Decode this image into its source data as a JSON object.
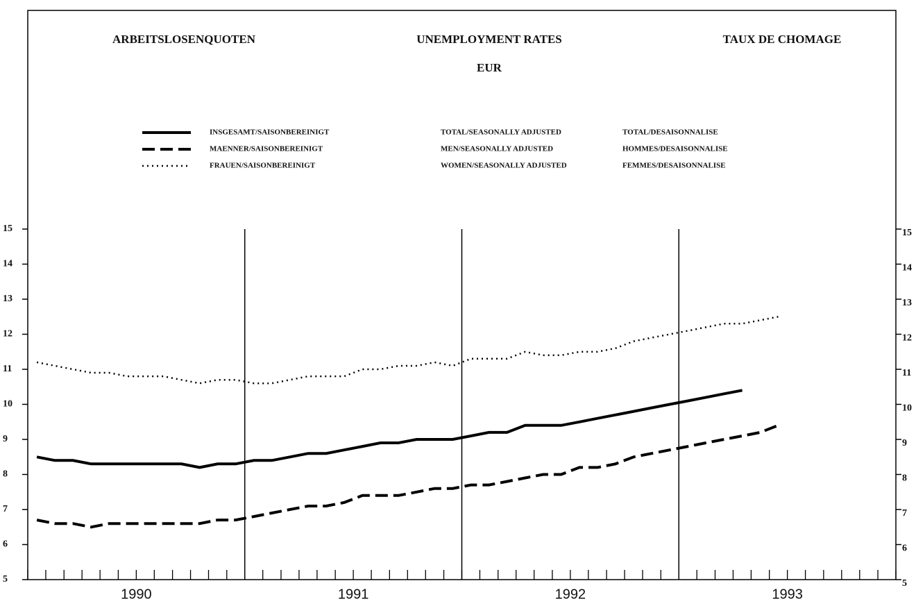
{
  "chart_data": {
    "type": "line",
    "title_de": "ARBEITSLOSENQUOTEN",
    "title_en": "UNEMPLOYMENT RATES",
    "title_fr": "TAUX DE CHOMAGE",
    "subtitle": "EUR",
    "x": [
      1990.042,
      1990.125,
      1990.208,
      1990.292,
      1990.375,
      1990.458,
      1990.542,
      1990.625,
      1990.708,
      1990.792,
      1990.875,
      1990.958,
      1991.042,
      1991.125,
      1991.208,
      1991.292,
      1991.375,
      1991.458,
      1991.542,
      1991.625,
      1991.708,
      1991.792,
      1991.875,
      1991.958,
      1992.042,
      1992.125,
      1992.208,
      1992.292,
      1992.375,
      1992.458,
      1992.542,
      1992.625,
      1992.708,
      1992.792,
      1992.875,
      1992.958,
      1993.042,
      1993.125,
      1993.208,
      1993.292,
      1993.375,
      1993.458
    ],
    "series": [
      {
        "name": "INSGESAMT/SAISONBEREINIGT",
        "name_en": "TOTAL/SEASONALLY ADJUSTED",
        "name_fr": "TOTAL/DESAISONNALISE",
        "color": "#000000",
        "dash": "solid",
        "values": [
          8.5,
          8.4,
          8.4,
          8.3,
          8.3,
          8.3,
          8.3,
          8.3,
          8.3,
          8.2,
          8.3,
          8.3,
          8.4,
          8.4,
          8.5,
          8.6,
          8.6,
          8.7,
          8.8,
          8.9,
          8.9,
          9.0,
          9.0,
          9.0,
          9.1,
          9.2,
          9.2,
          9.4,
          9.4,
          9.4,
          9.5,
          9.6,
          9.7,
          9.8,
          9.9,
          10.0,
          10.1,
          10.2,
          10.3,
          10.4,
          null,
          null
        ]
      },
      {
        "name": "MAENNER/SAISONBEREINIGT",
        "name_en": "MEN/SEASONALLY ADJUSTED",
        "name_fr": "HOMMES/DESAISONNALISE",
        "color": "#000000",
        "dash": "dashed",
        "values": [
          6.7,
          6.6,
          6.6,
          6.5,
          6.6,
          6.6,
          6.6,
          6.6,
          6.6,
          6.6,
          6.7,
          6.7,
          6.8,
          6.9,
          7.0,
          7.1,
          7.1,
          7.2,
          7.4,
          7.4,
          7.4,
          7.5,
          7.6,
          7.6,
          7.7,
          7.7,
          7.8,
          7.9,
          8.0,
          8.0,
          8.2,
          8.2,
          8.3,
          8.5,
          8.6,
          8.7,
          8.8,
          8.9,
          9.0,
          9.1,
          9.2,
          9.4
        ]
      },
      {
        "name": "FRAUEN/SAISONBEREINIGT",
        "name_en": "WOMEN/SEASONALLY ADJUSTED",
        "name_fr": "FEMMES/DESAISONNALISE",
        "color": "#000000",
        "dash": "dotted",
        "values": [
          11.2,
          11.1,
          11.0,
          10.9,
          10.9,
          10.8,
          10.8,
          10.8,
          10.7,
          10.6,
          10.7,
          10.7,
          10.6,
          10.6,
          10.7,
          10.8,
          10.8,
          10.8,
          11.0,
          11.0,
          11.1,
          11.1,
          11.2,
          11.1,
          11.3,
          11.3,
          11.3,
          11.5,
          11.4,
          11.4,
          11.5,
          11.5,
          11.6,
          11.8,
          11.9,
          12.0,
          12.1,
          12.2,
          12.3,
          12.3,
          12.4,
          12.5
        ]
      }
    ],
    "xlim": [
      1990,
      1994
    ],
    "xticks": [
      {
        "value": 1990.5,
        "label": "1990"
      },
      {
        "value": 1991.5,
        "label": "1991"
      },
      {
        "value": 1992.5,
        "label": "1992"
      },
      {
        "value": 1993.5,
        "label": "1993"
      }
    ],
    "xminorticks": [
      1990,
      1990.083,
      1990.167,
      1990.25,
      1990.333,
      1990.417,
      1990.5,
      1990.583,
      1990.667,
      1990.75,
      1990.833,
      1990.917,
      1991,
      1991.083,
      1991.167,
      1991.25,
      1991.333,
      1991.417,
      1991.5,
      1991.583,
      1991.667,
      1991.75,
      1991.833,
      1991.917,
      1992,
      1992.083,
      1992.167,
      1992.25,
      1992.333,
      1992.417,
      1992.5,
      1992.583,
      1992.667,
      1992.75,
      1992.833,
      1992.917,
      1993,
      1993.083,
      1993.167,
      1993.25,
      1993.333,
      1993.417,
      1993.5,
      1993.583,
      1993.667,
      1993.75,
      1993.833,
      1993.917,
      1994
    ],
    "vlines": [
      1991,
      1992,
      1993
    ],
    "ylim": [
      5,
      15
    ],
    "yticks": [
      5,
      6,
      7,
      8,
      9,
      10,
      11,
      12,
      13,
      14,
      15
    ]
  }
}
